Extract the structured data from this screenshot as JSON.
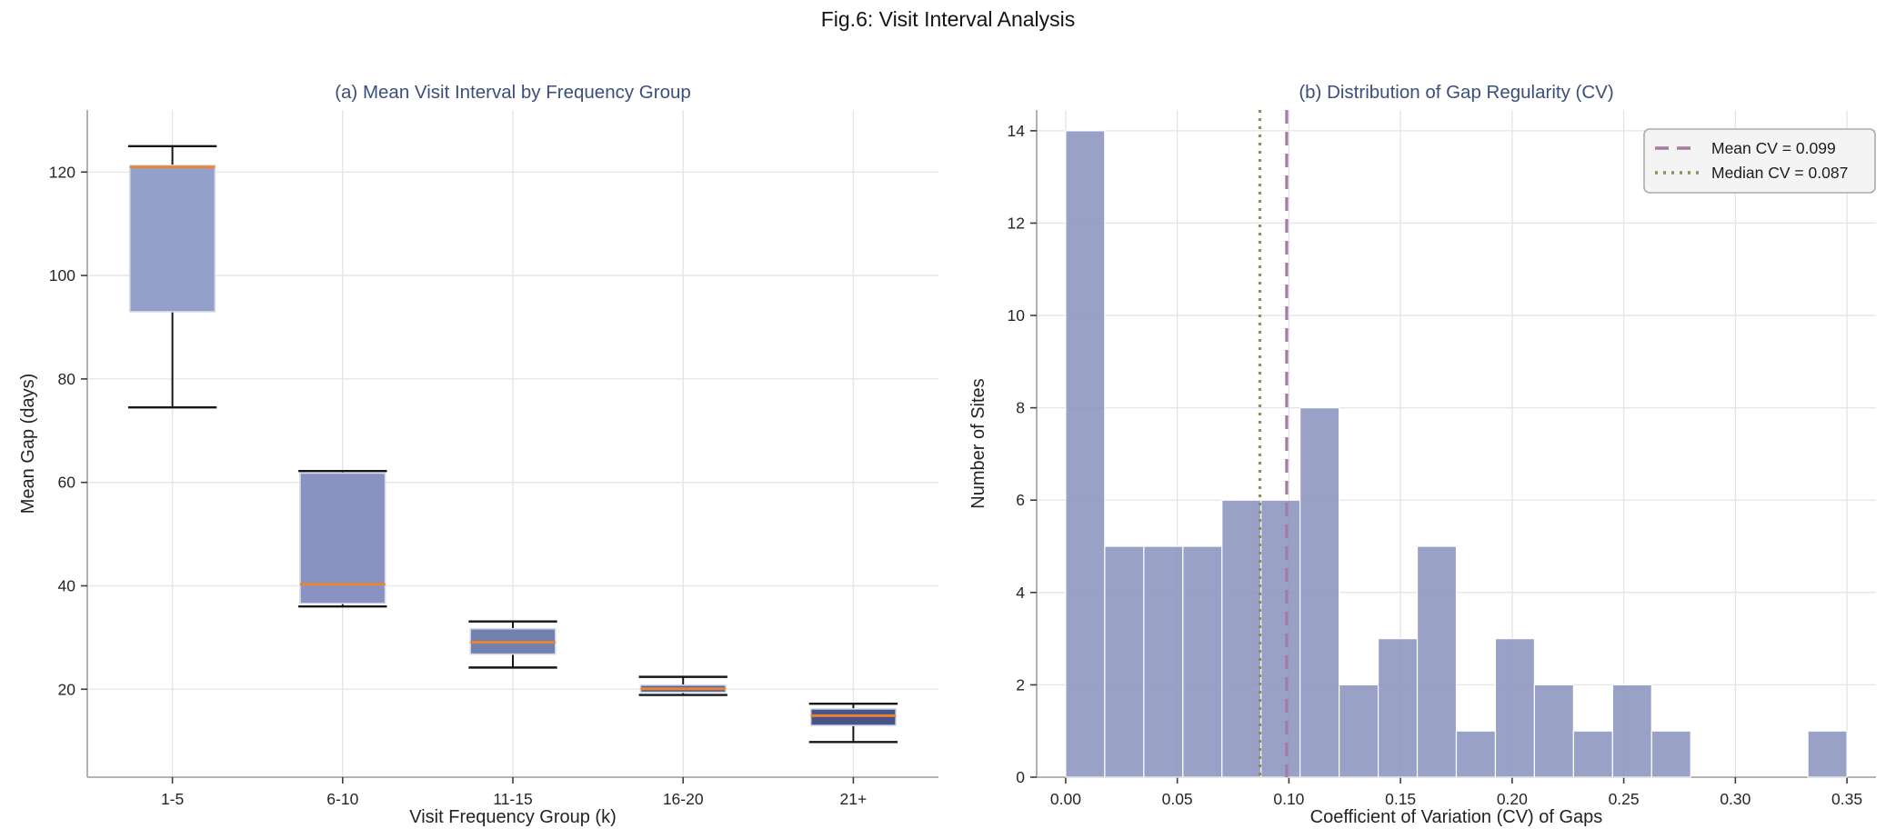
{
  "figure": {
    "title": "Fig.6: Visit Interval Analysis"
  },
  "colors": {
    "panel_title": "#3a4f7d",
    "grid": "#e4e4e9",
    "spine": "#a8a8ad",
    "tick_mark": "#3c3c3c",
    "tick_label": "#262626",
    "whisker": "#161616",
    "box_edge": "#d5daea",
    "median_orange": "#ef8328",
    "hist_bar": "#8b94bf",
    "hist_bar_edge": "#ffffff",
    "mean_line": "#a37ba3",
    "median_line": "#8d8f55",
    "legend_bg": "#f4f4f4",
    "legend_border": "#ababab"
  },
  "chart_data": [
    {
      "type": "boxplot",
      "panel": "a",
      "title": "(a) Mean Visit Interval by Frequency Group",
      "xlabel": "Visit Frequency Group (k)",
      "ylabel": "Mean Gap (days)",
      "categories": [
        "1-5",
        "6-10",
        "11-15",
        "16-20",
        "21+"
      ],
      "yticks": [
        20,
        40,
        60,
        80,
        100,
        120
      ],
      "ylim": [
        3,
        132
      ],
      "grid": "both",
      "boxes": [
        {
          "group": "1-5",
          "whisker_low": 74.5,
          "q1": 93.0,
          "median": 121.0,
          "q3": 121.3,
          "whisker_high": 125.0,
          "fill": "#93a0ca"
        },
        {
          "group": "6-10",
          "whisker_low": 36.0,
          "q1": 36.6,
          "median": 40.3,
          "q3": 61.8,
          "whisker_high": 62.2,
          "fill": "#8893c1"
        },
        {
          "group": "11-15",
          "whisker_low": 24.2,
          "q1": 26.8,
          "median": 29.1,
          "q3": 31.7,
          "whisker_high": 33.1,
          "fill": "#7381b1"
        },
        {
          "group": "16-20",
          "whisker_low": 18.9,
          "q1": 19.4,
          "median": 20.1,
          "q3": 20.8,
          "whisker_high": 22.4,
          "fill": "#5a679b"
        },
        {
          "group": "21+",
          "whisker_low": 9.8,
          "q1": 13.0,
          "median": 14.9,
          "q3": 16.2,
          "whisker_high": 17.2,
          "fill": "#475489"
        }
      ]
    },
    {
      "type": "histogram",
      "panel": "b",
      "title": "(b) Distribution of Gap Regularity (CV)",
      "xlabel": "Coefficient of Variation (CV) of Gaps",
      "ylabel": "Number of Sites",
      "bin_start": 0,
      "bin_width": 0.0175,
      "counts": [
        14,
        5,
        5,
        5,
        6,
        6,
        8,
        2,
        3,
        5,
        1,
        3,
        2,
        1,
        2,
        1,
        0,
        0,
        0,
        1
      ],
      "total_sites": 70,
      "xtick_labels": [
        "0.00",
        "0.05",
        "0.10",
        "0.15",
        "0.20",
        "0.25",
        "0.30",
        "0.35"
      ],
      "yticks": [
        0,
        2,
        4,
        6,
        8,
        10,
        12,
        14
      ],
      "xlim": [
        -0.013,
        0.363
      ],
      "ylim": [
        0,
        14.45
      ],
      "grid": "both",
      "reference_lines": [
        {
          "name": "mean",
          "value": 0.099,
          "label": "Mean CV = 0.099",
          "style": "dashed",
          "color": "#a37ba3"
        },
        {
          "name": "median",
          "value": 0.087,
          "label": "Median CV = 0.087",
          "style": "dotted",
          "color": "#8d8f55"
        }
      ],
      "legend_position": "upper right"
    }
  ]
}
